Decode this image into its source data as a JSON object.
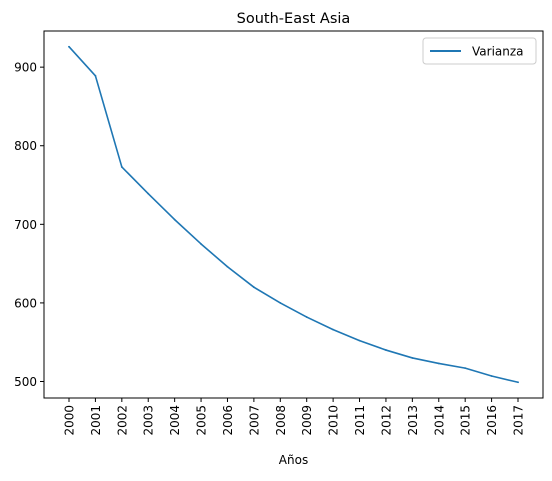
{
  "chart_data": {
    "type": "line",
    "title": "South-East Asia",
    "xlabel": "Años",
    "ylabel": "",
    "x": [
      "2000",
      "2001",
      "2002",
      "2003",
      "2004",
      "2005",
      "2006",
      "2007",
      "2008",
      "2009",
      "2010",
      "2011",
      "2012",
      "2013",
      "2014",
      "2015",
      "2016",
      "2017"
    ],
    "series": [
      {
        "name": "Varianza",
        "color": "#1f77b4",
        "values": [
          926,
          889,
          773,
          739,
          706,
          675,
          646,
          620,
          600,
          582,
          566,
          552,
          540,
          530,
          523,
          517,
          507,
          499
        ]
      }
    ],
    "ylim": [
      479,
      946
    ],
    "yticks": [
      500,
      600,
      700,
      800,
      900
    ],
    "grid": false,
    "legend": "top-right"
  }
}
